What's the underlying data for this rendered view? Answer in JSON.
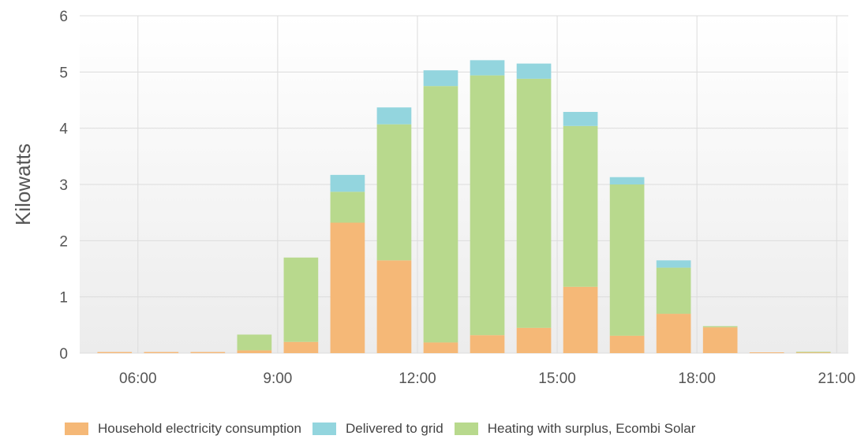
{
  "chart_data": {
    "type": "bar",
    "stacked": true,
    "ylabel": "Kilowatts",
    "ylim": [
      0,
      6
    ],
    "yticks": [
      0,
      1,
      2,
      3,
      4,
      5,
      6
    ],
    "x": [
      5.5,
      6.5,
      7.5,
      8.5,
      9.5,
      10.5,
      11.5,
      12.5,
      13.5,
      14.5,
      15.5,
      16.5,
      17.5,
      18.5,
      19.5,
      20.5
    ],
    "xlim": [
      4.75,
      21.25
    ],
    "xticks": [
      {
        "value": 6,
        "label": "06:00"
      },
      {
        "value": 9,
        "label": "9:00"
      },
      {
        "value": 12,
        "label": "12:00"
      },
      {
        "value": 15,
        "label": "15:00"
      },
      {
        "value": 18,
        "label": "18:00"
      },
      {
        "value": 21,
        "label": "21:00"
      }
    ],
    "grid": true,
    "legend_position": "bottom",
    "series": [
      {
        "name": "Household electricity consumption",
        "color": "#f5b877",
        "values": [
          0.02,
          0.02,
          0.02,
          0.05,
          0.2,
          2.32,
          1.65,
          0.19,
          0.32,
          0.45,
          1.18,
          0.31,
          0.7,
          0.46,
          0.01,
          0.01
        ]
      },
      {
        "name": "Heating with surplus, Ecombi Solar",
        "color": "#b8d98d",
        "values": [
          0.0,
          0.0,
          0.0,
          0.28,
          1.5,
          0.55,
          2.42,
          4.56,
          4.62,
          4.43,
          2.86,
          2.69,
          0.82,
          0.02,
          0.0,
          0.01
        ]
      },
      {
        "name": "Delivered to grid",
        "color": "#93d5de",
        "values": [
          0.0,
          0.0,
          0.0,
          0.0,
          0.0,
          0.3,
          0.3,
          0.28,
          0.27,
          0.27,
          0.25,
          0.13,
          0.13,
          0.0,
          0.0,
          0.0
        ]
      }
    ],
    "legend": [
      {
        "name": "Household electricity consumption",
        "color": "#f5b877"
      },
      {
        "name": "Delivered to grid",
        "color": "#93d5de"
      },
      {
        "name": "Heating with surplus, Ecombi Solar",
        "color": "#b8d98d"
      }
    ]
  }
}
